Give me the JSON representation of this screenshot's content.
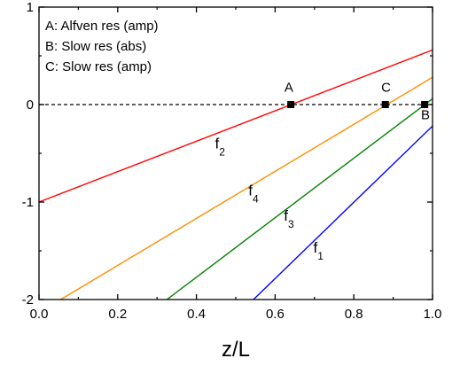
{
  "chart_data": {
    "type": "line",
    "xlabel": "z/L",
    "ylabel": "",
    "xlim": [
      0,
      1
    ],
    "ylim": [
      -2,
      1
    ],
    "x_ticks": [
      "0.0",
      "0.2",
      "0.4",
      "0.6",
      "0.8",
      "1.0"
    ],
    "y_ticks": [
      "-2",
      "-1",
      "0",
      "1"
    ],
    "x_tick_values": [
      0,
      0.2,
      0.4,
      0.6,
      0.8,
      1.0
    ],
    "y_tick_values": [
      -2,
      -1,
      0,
      1
    ],
    "grid": false,
    "legend_position": "top-left",
    "legend": [
      "A: Alfven res (amp)",
      "B: Slow res (abs)",
      "C: Slow res (amp)"
    ],
    "reference_line": {
      "y": 0,
      "style": "dashed",
      "color": "#000000"
    },
    "series": [
      {
        "name": "f",
        "subscript": "1",
        "color": "#0000ff",
        "x": [
          0.545,
          1.0
        ],
        "y": [
          -2.0,
          -0.22
        ],
        "label_at": [
          0.71,
          -1.52
        ]
      },
      {
        "name": "f",
        "subscript": "2",
        "color": "#ff0000",
        "x": [
          0.0,
          1.0
        ],
        "y": [
          -1.0,
          0.56
        ],
        "label_at": [
          0.46,
          -0.45
        ]
      },
      {
        "name": "f",
        "subscript": "3",
        "color": "#008000",
        "x": [
          0.325,
          1.0
        ],
        "y": [
          -2.0,
          0.06
        ],
        "label_at": [
          0.635,
          -1.19
        ]
      },
      {
        "name": "f",
        "subscript": "4",
        "color": "#ff8c00",
        "x": [
          0.055,
          1.0
        ],
        "y": [
          -2.0,
          0.28
        ],
        "label_at": [
          0.545,
          -0.93
        ]
      }
    ],
    "points": [
      {
        "label": "A",
        "x": 0.64,
        "y": 0,
        "label_at": [
          0.635,
          0.13
        ]
      },
      {
        "label": "C",
        "x": 0.88,
        "y": 0,
        "label_at": [
          0.882,
          0.13
        ]
      },
      {
        "label": "B",
        "x": 0.98,
        "y": 0,
        "label_at": [
          0.982,
          -0.15
        ]
      }
    ]
  }
}
